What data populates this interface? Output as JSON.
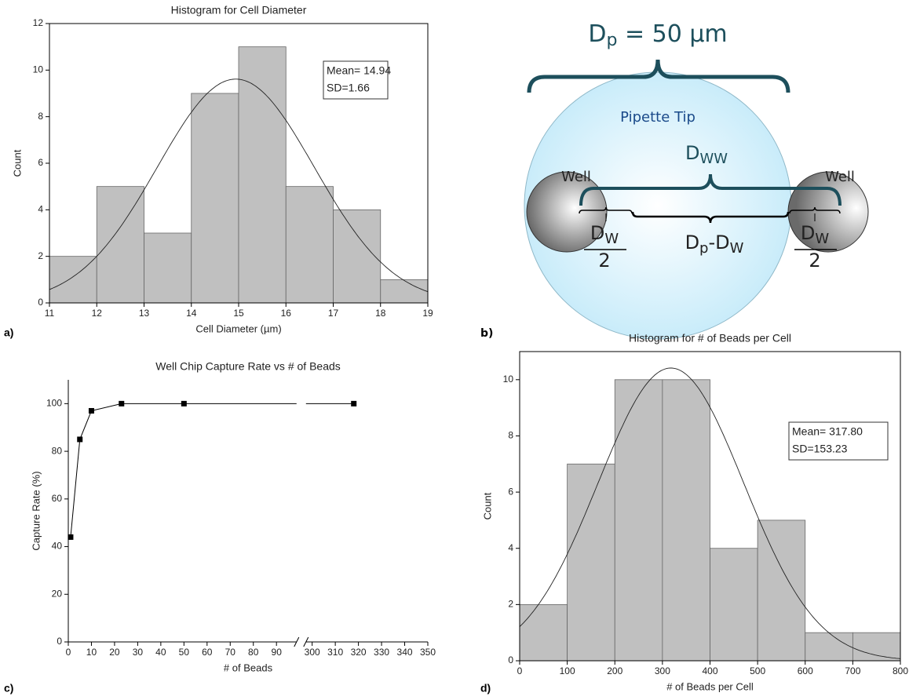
{
  "chart_data": [
    {
      "type": "histogram",
      "label": "a)",
      "title": "Histogram for Cell Diameter",
      "x_label": "Cell Diameter (µm)",
      "y_label": "Count",
      "bins": [
        11,
        12,
        13,
        14,
        15,
        16,
        17,
        18,
        19
      ],
      "values": [
        2,
        5,
        3,
        9,
        11,
        5,
        4,
        1
      ],
      "color": "#c0c0c0",
      "xlim": [
        11,
        19
      ],
      "xticks": [
        11,
        12,
        13,
        14,
        15,
        16,
        17,
        18,
        19
      ],
      "ylim": [
        0,
        12
      ],
      "yticks": [
        0,
        2,
        4,
        6,
        8,
        10,
        12
      ],
      "fit": {
        "mean": 14.94,
        "sd": 1.66,
        "labels": [
          "Mean= 14.94",
          "SD=1.66"
        ]
      }
    },
    {
      "type": "line",
      "label": "c)",
      "title": "Well Chip Capture Rate vs # of Beads",
      "x_label": "# of Beads",
      "y_label": "Capture Rate (%)",
      "x": [
        1,
        5,
        10,
        23,
        50,
        318
      ],
      "values": [
        44,
        85,
        97,
        100,
        100,
        100
      ],
      "color": "#000000",
      "xlim": [
        0,
        350
      ],
      "xbreak": [
        98,
        298
      ],
      "xticks": [
        0,
        10,
        20,
        30,
        40,
        50,
        60,
        70,
        80,
        90,
        300,
        310,
        320,
        330,
        340,
        350
      ],
      "ylim": [
        0,
        110
      ],
      "yticks": [
        0,
        20,
        40,
        60,
        80,
        100
      ]
    },
    {
      "type": "histogram",
      "label": "d)",
      "title": "Histogram for # of Beads per Cell",
      "x_label": "# of Beads per Cell",
      "y_label": "Count",
      "bins": [
        0,
        100,
        200,
        300,
        400,
        500,
        600,
        700,
        800
      ],
      "values": [
        2,
        7,
        10,
        10,
        4,
        5,
        1,
        1
      ],
      "color": "#c0c0c0",
      "xlim": [
        0,
        800
      ],
      "xticks": [
        0,
        100,
        200,
        300,
        400,
        500,
        600,
        700,
        800
      ],
      "ylim": [
        0,
        11
      ],
      "yticks": [
        0,
        2,
        4,
        6,
        8,
        10
      ],
      "fit": {
        "mean": 317.8,
        "sd": 153.23,
        "labels": [
          "Mean= 317.80",
          "SD=153.23"
        ]
      }
    }
  ],
  "diagram": {
    "label": "b)",
    "pipette_diameter": [
      "D",
      "p",
      " = 50 µm"
    ],
    "pipette_label": "Pipette Tip",
    "well_left": "Well",
    "well_right": "Well",
    "dww": [
      "D",
      "WW"
    ],
    "dw_half_left": [
      "D",
      "W",
      "2"
    ],
    "dp_dw": [
      "D",
      "p",
      "-D",
      "W"
    ],
    "dw_half_right": [
      "D",
      "W",
      "2"
    ]
  }
}
